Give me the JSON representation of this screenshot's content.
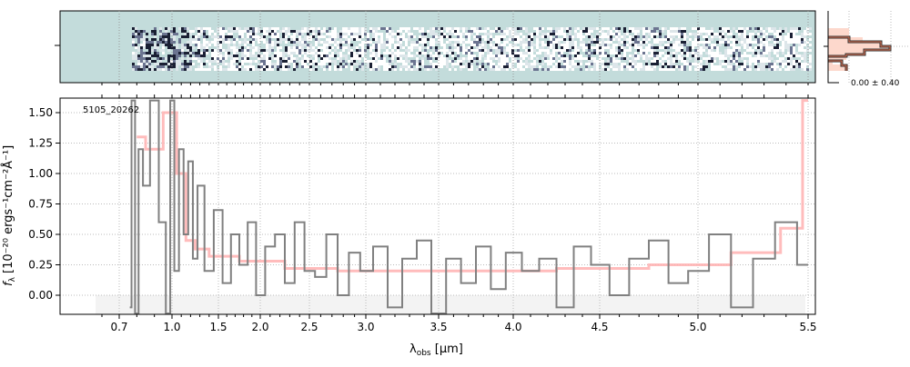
{
  "chart_data": {
    "type": "line",
    "object_label": "5105_20262",
    "xlabel": "λobs [μm]",
    "xlabel_main": "λ",
    "xlabel_sub": "obs",
    "xlabel_unit": " [μm]",
    "ylabel": "fλ [10^-20 ergs^-1cm^-2Å^-1]",
    "ylabel_text": "f",
    "ylabel_sub": "λ",
    "ylabel_unit": " [10⁻²⁰ ergs⁻¹cm⁻²Å⁻¹]",
    "xlim": [
      0.6,
      5.52
    ],
    "ylim": [
      -0.16,
      1.62
    ],
    "x_ticks": [
      0.7,
      1.0,
      1.5,
      2.0,
      2.5,
      3.0,
      3.5,
      4.0,
      4.5,
      5.0,
      5.5
    ],
    "x_tick_labels": [
      "0.7",
      "1.0",
      "1.5",
      "2.0",
      "2.5",
      "3.0",
      "3.5",
      "4.0",
      "4.5",
      "5.0",
      "5.5"
    ],
    "y_ticks": [
      0.0,
      0.25,
      0.5,
      0.75,
      1.0,
      1.25,
      1.5
    ],
    "y_tick_labels": [
      "0.00",
      "0.25",
      "0.50",
      "0.75",
      "1.00",
      "1.25",
      "1.50"
    ],
    "grid": true,
    "series": [
      {
        "name": "spectrum",
        "color": "#808080",
        "x": [
          0.76,
          0.78,
          0.8,
          0.82,
          0.85,
          0.9,
          0.95,
          0.98,
          1.0,
          1.05,
          1.1,
          1.15,
          1.2,
          1.25,
          1.3,
          1.4,
          1.5,
          1.6,
          1.7,
          1.8,
          1.9,
          2.0,
          2.1,
          2.2,
          2.3,
          2.4,
          2.5,
          2.6,
          2.7,
          2.8,
          2.9,
          3.0,
          3.1,
          3.2,
          3.3,
          3.4,
          3.5,
          3.6,
          3.7,
          3.8,
          3.9,
          4.0,
          4.1,
          4.2,
          4.3,
          4.4,
          4.5,
          4.6,
          4.7,
          4.8,
          4.9,
          5.0,
          5.1,
          5.2,
          5.3,
          5.4,
          5.5
        ],
        "y": [
          -0.1,
          1.6,
          -0.15,
          1.2,
          0.9,
          1.6,
          0.6,
          -0.15,
          1.6,
          0.2,
          1.2,
          0.5,
          1.1,
          0.3,
          0.9,
          0.2,
          0.7,
          0.1,
          0.5,
          0.25,
          0.6,
          0.0,
          0.4,
          0.5,
          0.1,
          0.6,
          0.2,
          0.15,
          0.5,
          0.0,
          0.35,
          0.2,
          0.4,
          -0.1,
          0.3,
          0.45,
          -0.15,
          0.3,
          0.1,
          0.4,
          0.05,
          0.35,
          0.2,
          0.3,
          -0.1,
          0.4,
          0.25,
          0.0,
          0.3,
          0.45,
          0.1,
          0.2,
          0.5,
          -0.1,
          0.3,
          0.6,
          0.25
        ]
      },
      {
        "name": "model",
        "color": "#ffb0b0",
        "x": [
          0.8,
          0.9,
          1.0,
          1.1,
          1.2,
          1.3,
          1.5,
          2.0,
          2.5,
          3.0,
          3.5,
          4.0,
          4.5,
          5.0,
          5.3,
          5.45,
          5.5
        ],
        "y": [
          1.3,
          1.2,
          1.5,
          1.0,
          0.45,
          0.38,
          0.32,
          0.28,
          0.22,
          0.2,
          0.2,
          0.2,
          0.22,
          0.25,
          0.35,
          0.55,
          1.6
        ]
      }
    ],
    "inset_histogram": {
      "label": "0.00 ± 0.40"
    }
  }
}
